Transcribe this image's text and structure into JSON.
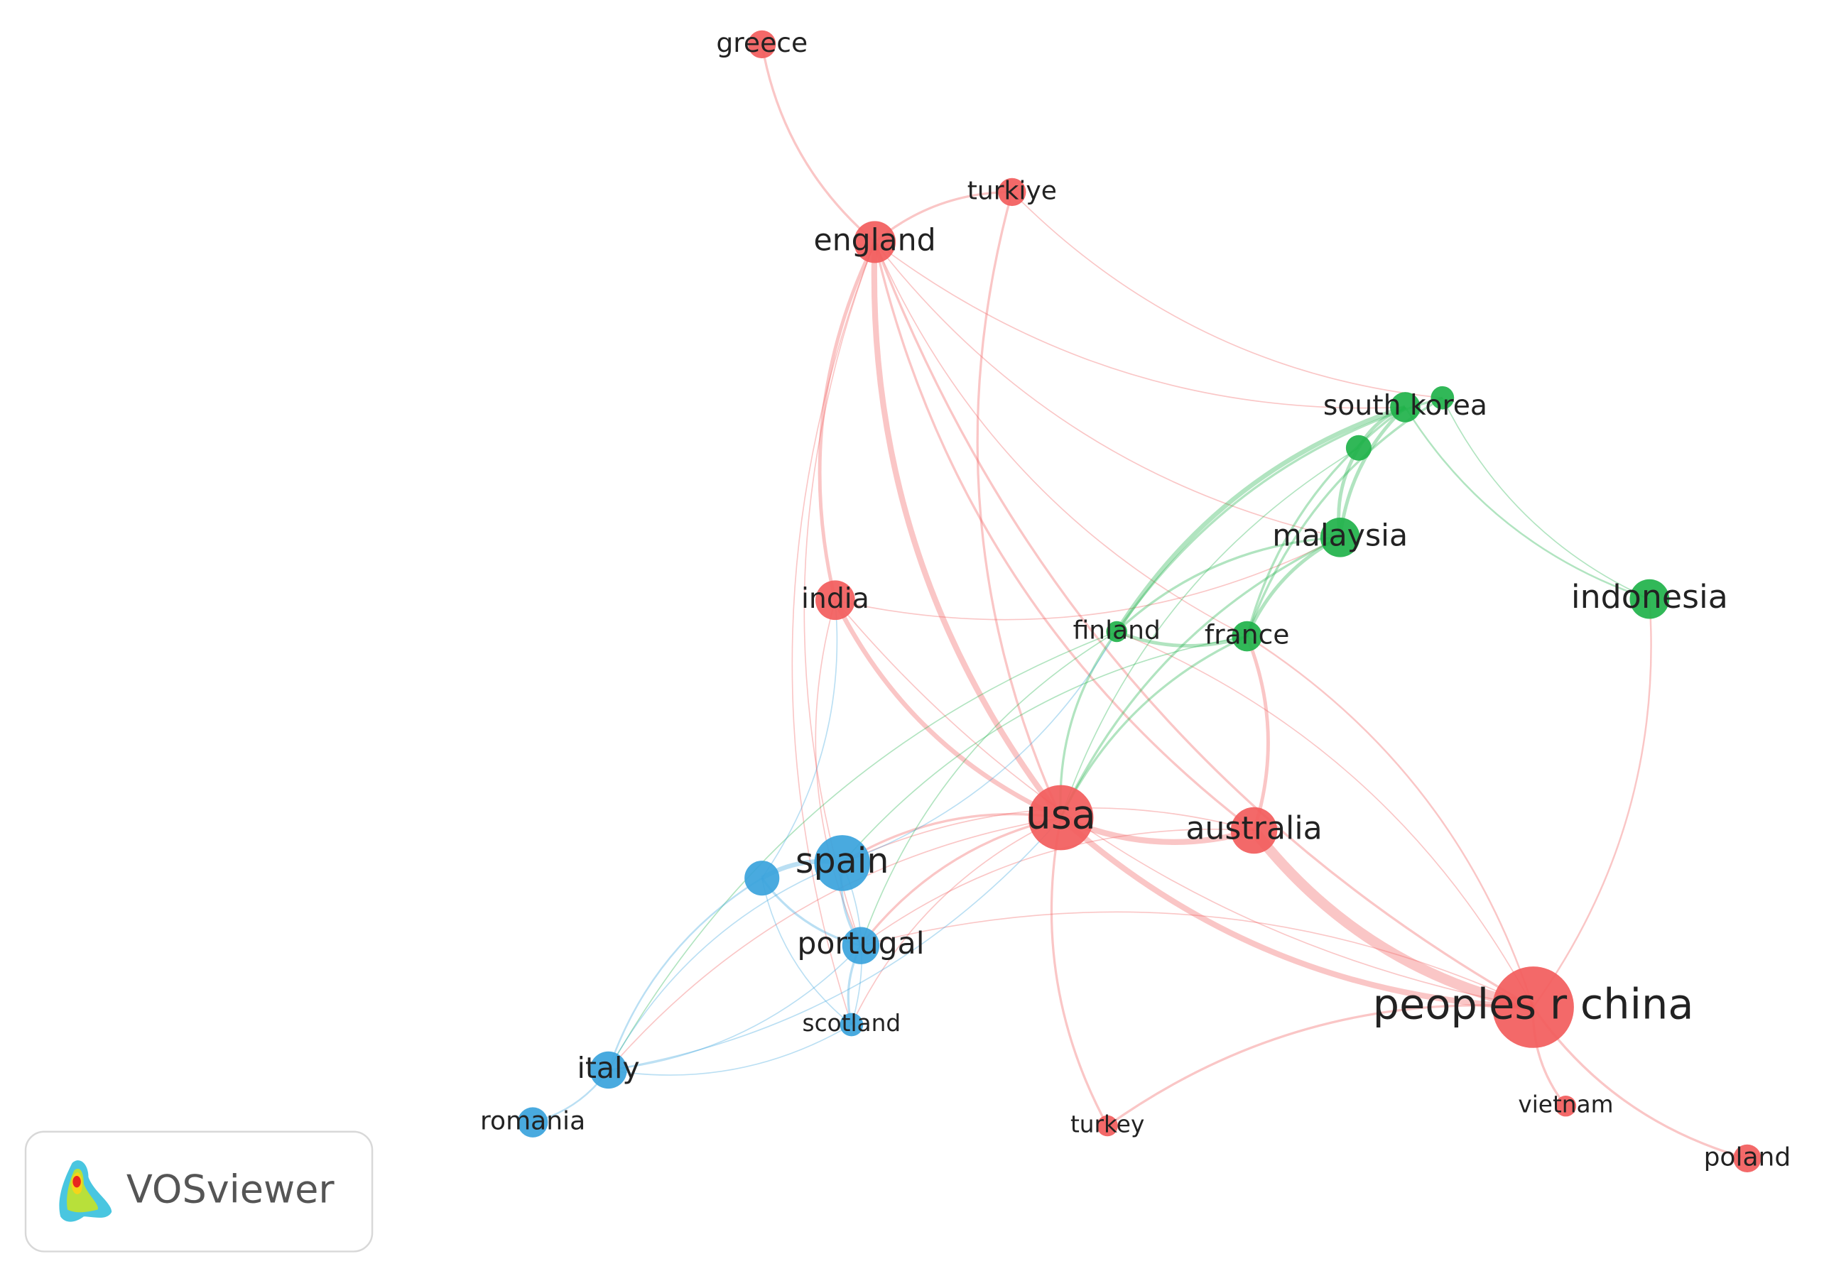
{
  "nodes": [
    {
      "label": "greece"
    },
    {
      "label": "turkiye"
    },
    {
      "label": "england"
    },
    {
      "label": "south korea"
    },
    {
      "label": "malaysia"
    },
    {
      "label": "indonesia"
    },
    {
      "label": "india"
    },
    {
      "label": "finland"
    },
    {
      "label": "france"
    },
    {
      "label": "usa"
    },
    {
      "label": "australia"
    },
    {
      "label": "spain"
    },
    {
      "label": "portugal"
    },
    {
      "label": "peoples r china"
    },
    {
      "label": "scotland"
    },
    {
      "label": "italy"
    },
    {
      "label": "vietnam"
    },
    {
      "label": "romania"
    },
    {
      "label": "turkey"
    },
    {
      "label": "poland"
    }
  ],
  "logo": {
    "text": "VOSviewer"
  }
}
